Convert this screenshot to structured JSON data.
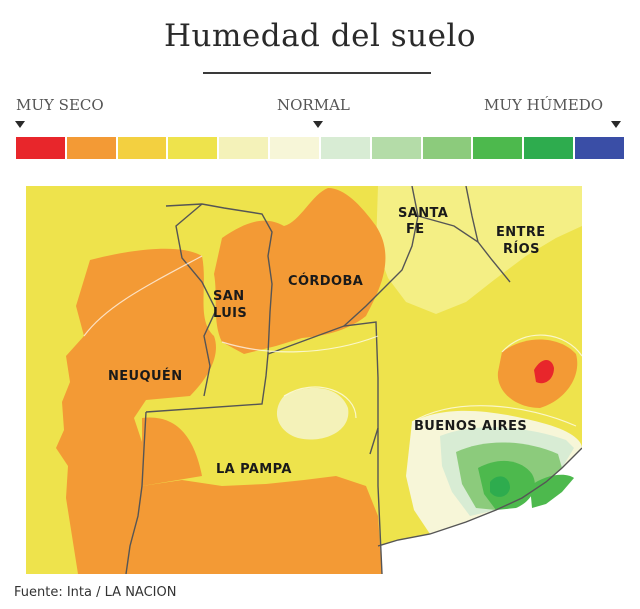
{
  "title": "Humedad del suelo",
  "legend": {
    "left_label": "MUY SECO",
    "center_label": "NORMAL",
    "right_label": "MUY HÚMEDO",
    "colors": [
      "#e8262b",
      "#f39a35",
      "#f3d040",
      "#eee34c",
      "#f4f2b9",
      "#f7f6d8",
      "#d8ecd4",
      "#b4dca8",
      "#8ccb7c",
      "#4db94d",
      "#2eac4e",
      "#3a4ea6"
    ]
  },
  "provinces": {
    "santa_fe_line1": "SANTA",
    "santa_fe_line2": "FE",
    "entre_rios_line1": "ENTRE",
    "entre_rios_line2": "RÍOS",
    "cordoba": "CÓRDOBA",
    "san_luis_line1": "SAN",
    "san_luis_line2": "LUIS",
    "neuquen": "NEUQUÉN",
    "buenos_aires": "BUENOS AIRES",
    "la_pampa": "LA PAMPA"
  },
  "source": "Fuente: Inta / LA NACION"
}
